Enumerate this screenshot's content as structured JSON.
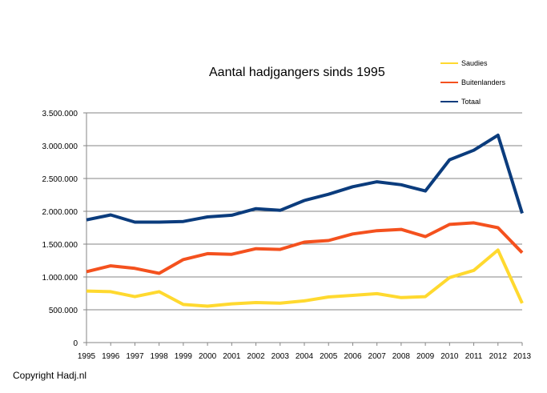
{
  "chart_data": {
    "type": "line",
    "title": "Aantal hadjgangers sinds 1995",
    "xlabel": "",
    "ylabel": "",
    "categories": [
      "1995",
      "1996",
      "1997",
      "1998",
      "1999",
      "2000",
      "2001",
      "2002",
      "2003",
      "2004",
      "2005",
      "2006",
      "2007",
      "2008",
      "2009",
      "2010",
      "2011",
      "2012",
      "2013"
    ],
    "ylim": [
      0,
      3500000
    ],
    "yticks": [
      0,
      500000,
      1000000,
      1500000,
      2000000,
      2500000,
      3000000,
      3500000
    ],
    "ytick_labels": [
      "0",
      "500.000",
      "1.000.000",
      "1.500.000",
      "2.000.000",
      "2.500.000",
      "3.000.000",
      "3.500.000"
    ],
    "grid": true,
    "legend_position": "top-right",
    "series": [
      {
        "name": "Saudies",
        "color": "#FFD92F",
        "values": [
          785000,
          775000,
          700000,
          775000,
          580000,
          555000,
          590000,
          610000,
          600000,
          635000,
          695000,
          720000,
          745000,
          685000,
          700000,
          990000,
          1100000,
          1410000,
          600000
        ]
      },
      {
        "name": "Buitenlanders",
        "color": "#F4511E",
        "values": [
          1080000,
          1170000,
          1130000,
          1055000,
          1265000,
          1355000,
          1345000,
          1430000,
          1420000,
          1530000,
          1555000,
          1655000,
          1705000,
          1725000,
          1615000,
          1800000,
          1825000,
          1750000,
          1370000
        ]
      },
      {
        "name": "Totaal",
        "color": "#0B3C7D",
        "values": [
          1870000,
          1945000,
          1835000,
          1835000,
          1845000,
          1915000,
          1940000,
          2040000,
          2015000,
          2165000,
          2260000,
          2375000,
          2450000,
          2405000,
          2310000,
          2785000,
          2930000,
          3160000,
          1970000
        ]
      }
    ]
  },
  "footer": {
    "copyright": "Copyright Hadj.nl"
  }
}
